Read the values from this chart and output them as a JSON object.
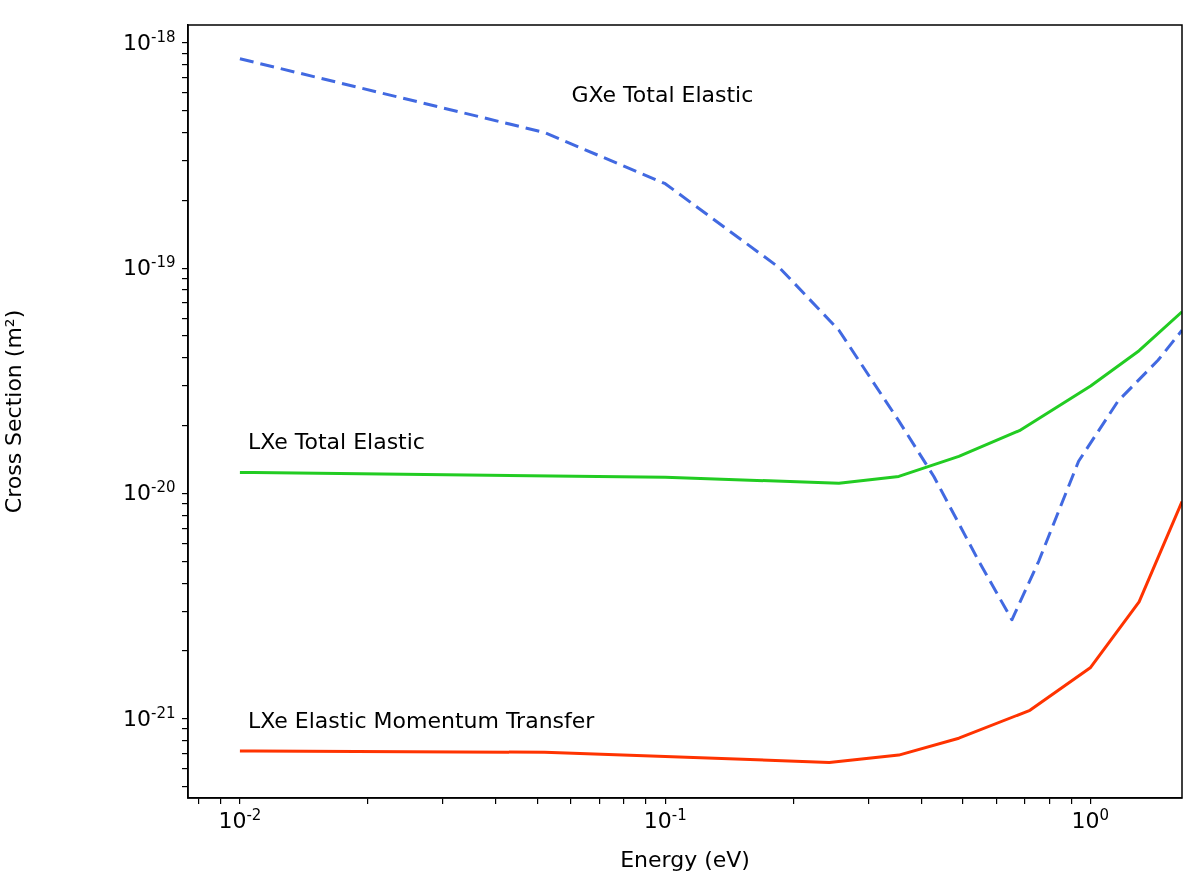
{
  "chart_data": {
    "type": "line",
    "xlabel": "Energy (eV)",
    "ylabel": "Cross Section (m²)",
    "log": "xy",
    "grid": false,
    "legend": false,
    "marker": "none",
    "xlim": [
      0.00755,
      1.64
    ],
    "ylim": [
      4.45e-22,
      1.2e-18
    ],
    "xticks": [
      {
        "value": 0.008,
        "label": null
      },
      {
        "value": 0.009,
        "label": null
      },
      {
        "value": 0.01,
        "label": "10$^{-2}$"
      },
      {
        "value": 0.02,
        "label": null
      },
      {
        "value": 0.03,
        "label": null
      },
      {
        "value": 0.04,
        "label": null
      },
      {
        "value": 0.05,
        "label": null
      },
      {
        "value": 0.06,
        "label": null
      },
      {
        "value": 0.07,
        "label": null
      },
      {
        "value": 0.08,
        "label": null
      },
      {
        "value": 0.09,
        "label": null
      },
      {
        "value": 0.1,
        "label": "10$^{-1}$"
      },
      {
        "value": 0.2,
        "label": null
      },
      {
        "value": 0.3,
        "label": null
      },
      {
        "value": 0.4,
        "label": null
      },
      {
        "value": 0.5,
        "label": null
      },
      {
        "value": 0.6,
        "label": null
      },
      {
        "value": 0.7,
        "label": null
      },
      {
        "value": 0.8,
        "label": null
      },
      {
        "value": 0.9,
        "label": null
      },
      {
        "value": 1,
        "label": "10$^{0}$"
      }
    ],
    "yticks": [
      {
        "value": 5e-22,
        "label": null
      },
      {
        "value": 6e-22,
        "label": null
      },
      {
        "value": 7e-22,
        "label": null
      },
      {
        "value": 8e-22,
        "label": null
      },
      {
        "value": 9e-22,
        "label": null
      },
      {
        "value": 1e-21,
        "label": "10$^{-21}$"
      },
      {
        "value": 2e-21,
        "label": null
      },
      {
        "value": 3e-21,
        "label": null
      },
      {
        "value": 4e-21,
        "label": null
      },
      {
        "value": 5e-21,
        "label": null
      },
      {
        "value": 6e-21,
        "label": null
      },
      {
        "value": 7e-21,
        "label": null
      },
      {
        "value": 8e-21,
        "label": null
      },
      {
        "value": 9e-21,
        "label": null
      },
      {
        "value": 1e-20,
        "label": "10$^{-20}$"
      },
      {
        "value": 2e-20,
        "label": null
      },
      {
        "value": 3e-20,
        "label": null
      },
      {
        "value": 4e-20,
        "label": null
      },
      {
        "value": 5e-20,
        "label": null
      },
      {
        "value": 6e-20,
        "label": null
      },
      {
        "value": 7e-20,
        "label": null
      },
      {
        "value": 8e-20,
        "label": null
      },
      {
        "value": 9e-20,
        "label": null
      },
      {
        "value": 1e-19,
        "label": "10$^{-19}$"
      },
      {
        "value": 2e-19,
        "label": null
      },
      {
        "value": 3e-19,
        "label": null
      },
      {
        "value": 4e-19,
        "label": null
      },
      {
        "value": 5e-19,
        "label": null
      },
      {
        "value": 6e-19,
        "label": null
      },
      {
        "value": 7e-19,
        "label": null
      },
      {
        "value": 8e-19,
        "label": null
      },
      {
        "value": 9e-19,
        "label": null
      },
      {
        "value": 1e-18,
        "label": "10$^{-18}$"
      }
    ],
    "series": [
      {
        "name": "GXe Total Elastic",
        "color": "#4169e1",
        "line_style": "dashed",
        "x": [
          0.01,
          0.052,
          0.1,
          0.186,
          0.256,
          0.354,
          0.428,
          0.546,
          0.653,
          0.755,
          0.937,
          1.16,
          1.44,
          1.64
        ],
        "values": [
          8.5e-19,
          4e-19,
          2.37e-19,
          1e-19,
          5.3e-20,
          2.1e-20,
          1.19e-20,
          5e-21,
          2.75e-21,
          5e-21,
          1.39e-20,
          2.57e-20,
          3.9e-20,
          5.3e-20
        ]
      },
      {
        "name": "LXe Total Elastic",
        "color": "#22cc22",
        "line_style": "solid",
        "x": [
          0.01,
          0.1,
          0.256,
          0.354,
          0.49,
          0.68,
          1.0,
          1.3,
          1.64
        ],
        "values": [
          1.24e-20,
          1.18e-20,
          1.11e-20,
          1.19e-20,
          1.46e-20,
          1.9e-20,
          3e-20,
          4.3e-20,
          6.4e-20
        ]
      },
      {
        "name": "LXe Elastic Momentum Transfer",
        "color": "#ff3300",
        "line_style": "solid",
        "x": [
          0.01,
          0.052,
          0.1,
          0.243,
          0.354,
          0.49,
          0.72,
          1.0,
          1.3,
          1.64
        ],
        "values": [
          7.2e-22,
          7.1e-22,
          6.8e-22,
          6.4e-22,
          6.9e-22,
          8.2e-22,
          1.09e-21,
          1.69e-21,
          3.3e-21,
          9.2e-21
        ]
      }
    ]
  }
}
